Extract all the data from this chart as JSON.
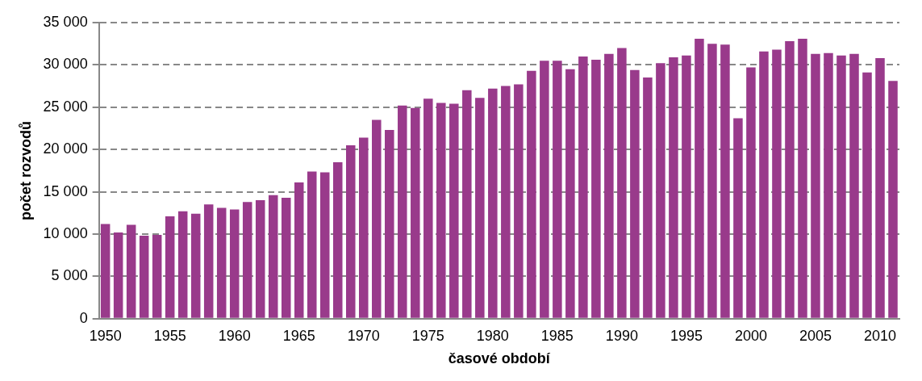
{
  "chart_data": {
    "type": "bar",
    "xlabel": "časové období",
    "ylabel": "počet rozvodů",
    "categories": [
      "1950",
      null,
      null,
      null,
      null,
      "1955",
      null,
      null,
      null,
      null,
      "1960",
      null,
      null,
      null,
      null,
      "1965",
      null,
      null,
      null,
      null,
      "1970",
      null,
      null,
      null,
      null,
      "1975",
      null,
      null,
      null,
      null,
      "1980",
      null,
      null,
      null,
      null,
      "1985",
      null,
      null,
      null,
      null,
      "1990",
      null,
      null,
      null,
      null,
      "1995",
      null,
      null,
      null,
      null,
      "2000",
      null,
      null,
      null,
      null,
      "2005",
      null,
      null,
      null,
      null,
      "2010",
      null
    ],
    "values": [
      11200,
      10200,
      11100,
      9800,
      9900,
      12100,
      12700,
      12400,
      13500,
      13100,
      12900,
      13800,
      14000,
      14600,
      14300,
      16100,
      17400,
      17300,
      18500,
      20500,
      21400,
      23500,
      22300,
      25200,
      24900,
      26000,
      25500,
      25400,
      27000,
      26100,
      27200,
      27500,
      27700,
      29300,
      30500,
      30500,
      29500,
      31000,
      30600,
      31300,
      32000,
      29400,
      28500,
      30200,
      30900,
      31100,
      33100,
      32500,
      32400,
      23700,
      29700,
      31600,
      31800,
      32800,
      33100,
      31300,
      31400,
      31100,
      31300,
      29100,
      30800,
      28100
    ],
    "color": "#993a8b",
    "ylim": [
      0,
      35000
    ],
    "yticks": [
      0,
      {
        "value": 5000,
        "label": "5 000"
      },
      {
        "value": 10000,
        "label": "10 000"
      },
      {
        "value": 15000,
        "label": "15 000"
      },
      {
        "value": 20000,
        "label": "20 000"
      },
      {
        "value": 25000,
        "label": "25 000"
      },
      {
        "value": 30000,
        "label": "30 000"
      },
      {
        "value": 35000,
        "label": "35 000"
      }
    ],
    "grid": "y"
  }
}
